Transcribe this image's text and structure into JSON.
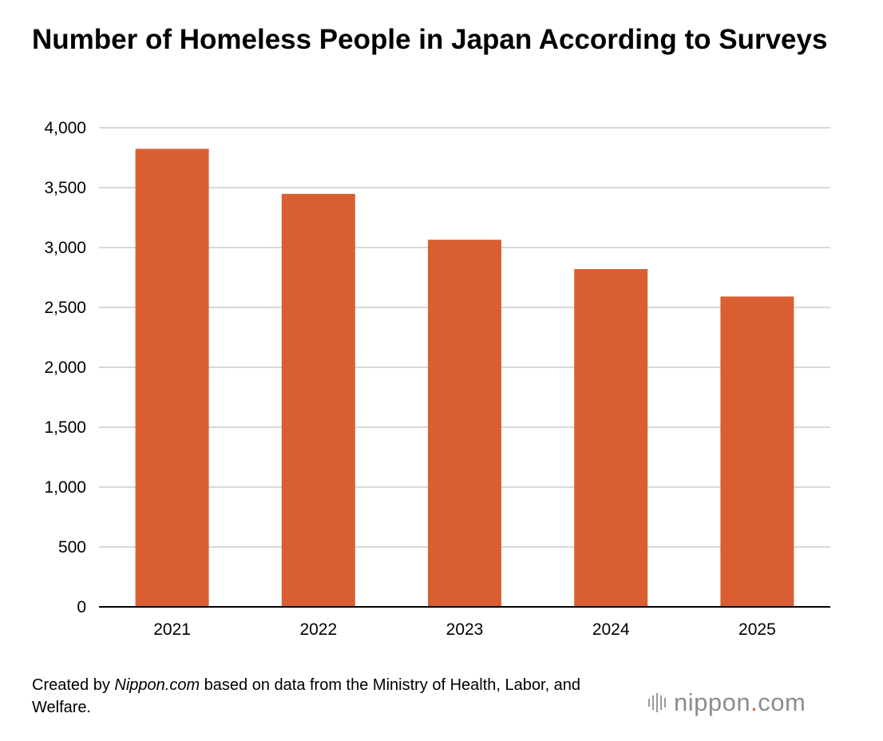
{
  "title": "Number of Homeless People in Japan According to Surveys",
  "footer": {
    "prefix": "Created by ",
    "source_name": "Nippon.com",
    "suffix": " based on data from the Ministry of Health, Labor, and Welfare."
  },
  "logo": {
    "name_part": "nippon",
    "dot": ".",
    "domain_part": "com"
  },
  "colors": {
    "bar": "#d95f32",
    "grid": "#cccccc",
    "axis": "#000000"
  },
  "chart_data": {
    "type": "bar",
    "title": "Number of Homeless People in Japan According to Surveys",
    "categories": [
      "2021",
      "2022",
      "2023",
      "2024",
      "2025"
    ],
    "values": [
      3824,
      3448,
      3065,
      2820,
      2591
    ],
    "ylim": [
      0,
      4000
    ],
    "yticks": [
      0,
      500,
      1000,
      1500,
      2000,
      2500,
      3000,
      3500,
      4000
    ],
    "ytick_labels": [
      "0",
      "500",
      "1,000",
      "1,500",
      "2,000",
      "2,500",
      "3,000",
      "3,500",
      "4,000"
    ],
    "xlabel": "",
    "ylabel": "",
    "grid": true,
    "legend": "none"
  }
}
